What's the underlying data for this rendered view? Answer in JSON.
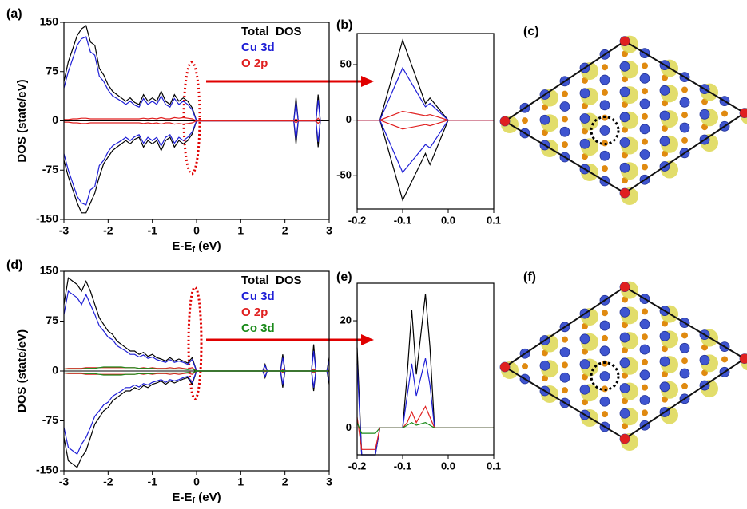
{
  "chart_data": [
    {
      "type": "line",
      "panel_label": "(a)",
      "ylabel": "DOS (state/eV)",
      "xlabel": {
        "main": "E-E",
        "sub": "f",
        "unit": " (eV)"
      },
      "xlim": [
        -3,
        3
      ],
      "xticks": [
        -3,
        -2,
        -1,
        0,
        1,
        2,
        3
      ],
      "ylim": [
        -150,
        150
      ],
      "yticks": [
        -150,
        -75,
        0,
        75,
        150
      ],
      "legend": "upper right",
      "x": [
        -3,
        -2.9,
        -2.8,
        -2.7,
        -2.6,
        -2.5,
        -2.4,
        -2.3,
        -2.2,
        -2.1,
        -2,
        -1.9,
        -1.8,
        -1.7,
        -1.6,
        -1.5,
        -1.4,
        -1.3,
        -1.2,
        -1.1,
        -1,
        -0.9,
        -0.8,
        -0.7,
        -0.6,
        -0.5,
        -0.4,
        -0.3,
        -0.2,
        -0.1,
        0,
        2.2,
        2.25,
        2.3,
        2.7,
        2.75,
        2.8
      ],
      "series": [
        {
          "name": "Total  DOS",
          "color": "#000000",
          "values": [
            60,
            90,
            110,
            130,
            140,
            145,
            120,
            115,
            80,
            70,
            55,
            45,
            40,
            35,
            30,
            35,
            28,
            25,
            40,
            30,
            35,
            30,
            45,
            30,
            25,
            40,
            30,
            35,
            30,
            20,
            0,
            0,
            35,
            0,
            0,
            40,
            0
          ],
          "values_down": [
            -60,
            -85,
            -105,
            -125,
            -140,
            -140,
            -125,
            -110,
            -85,
            -65,
            -55,
            -45,
            -40,
            -35,
            -30,
            -35,
            -28,
            -25,
            -40,
            -30,
            -35,
            -30,
            -45,
            -30,
            -25,
            -40,
            -30,
            -35,
            -30,
            -20,
            0,
            0,
            -35,
            0,
            0,
            -40,
            0
          ]
        },
        {
          "name": "Cu 3d",
          "color": "#1f1fd6",
          "values": [
            50,
            75,
            95,
            115,
            125,
            128,
            105,
            100,
            68,
            60,
            47,
            38,
            34,
            30,
            25,
            30,
            24,
            21,
            34,
            25,
            30,
            25,
            38,
            25,
            21,
            34,
            25,
            30,
            25,
            17,
            0,
            0,
            28,
            0,
            0,
            32,
            0
          ],
          "values_down": [
            -50,
            -75,
            -95,
            -115,
            -125,
            -128,
            -105,
            -100,
            -68,
            -60,
            -47,
            -38,
            -34,
            -30,
            -25,
            -30,
            -24,
            -21,
            -34,
            -25,
            -30,
            -25,
            -38,
            -25,
            -21,
            -34,
            -25,
            -30,
            -25,
            -17,
            0,
            0,
            -28,
            0,
            0,
            -32,
            0
          ]
        },
        {
          "name": "O 2p",
          "color": "#e02020",
          "values": [
            2,
            2,
            3,
            3,
            4,
            4,
            3,
            3,
            3,
            3,
            3,
            3,
            3,
            3,
            3,
            3,
            3,
            3,
            4,
            3,
            4,
            3,
            5,
            3,
            3,
            5,
            4,
            5,
            4,
            3,
            0,
            0,
            3,
            0,
            0,
            4,
            0
          ],
          "values_down": [
            -2,
            -2,
            -3,
            -3,
            -4,
            -4,
            -3,
            -3,
            -3,
            -3,
            -3,
            -3,
            -3,
            -3,
            -3,
            -3,
            -3,
            -3,
            -4,
            -3,
            -4,
            -3,
            -5,
            -3,
            -3,
            -5,
            -4,
            -5,
            -4,
            -3,
            0,
            0,
            -3,
            0,
            0,
            -4,
            0
          ]
        }
      ]
    },
    {
      "type": "line",
      "panel_label": "(b)",
      "xlim": [
        -0.2,
        0.1
      ],
      "xticks": [
        -0.2,
        -0.1,
        {
          "value": 0,
          "label": "0.0"
        },
        0.1
      ],
      "ylim": [
        -80,
        78
      ],
      "yticks": [
        -50,
        0,
        50
      ],
      "x": [
        -0.2,
        -0.15,
        -0.1,
        -0.05,
        -0.04,
        0,
        0.1
      ],
      "series": [
        {
          "color": "#000000",
          "values": [
            0,
            0,
            72,
            15,
            20,
            0,
            0
          ],
          "values_down": [
            0,
            0,
            -72,
            -30,
            -40,
            0,
            0
          ]
        },
        {
          "color": "#1f1fd6",
          "values": [
            0,
            0,
            47,
            12,
            15,
            0,
            0
          ],
          "values_down": [
            0,
            0,
            -47,
            -22,
            -25,
            0,
            0
          ]
        },
        {
          "color": "#e02020",
          "values": [
            0,
            0,
            8,
            4,
            5,
            0,
            0
          ],
          "values_down": [
            0,
            0,
            -8,
            -4,
            -5,
            0,
            0
          ]
        }
      ]
    },
    {
      "type": "line",
      "panel_label": "(d)",
      "ylabel": "DOS (state/eV)",
      "xlabel": {
        "main": "E-E",
        "sub": "f",
        "unit": " (eV)"
      },
      "xlim": [
        -3,
        3
      ],
      "xticks": [
        -3,
        -2,
        -1,
        0,
        1,
        2,
        3
      ],
      "ylim": [
        -150,
        150
      ],
      "yticks": [
        -150,
        -75,
        0,
        75,
        150
      ],
      "legend": "upper right",
      "x": [
        -3,
        -2.9,
        -2.8,
        -2.7,
        -2.6,
        -2.5,
        -2.4,
        -2.3,
        -2.2,
        -2.1,
        -2,
        -1.9,
        -1.8,
        -1.7,
        -1.6,
        -1.5,
        -1.4,
        -1.3,
        -1.2,
        -1.1,
        -1,
        -0.9,
        -0.8,
        -0.7,
        -0.6,
        -0.5,
        -0.4,
        -0.3,
        -0.2,
        -0.1,
        0,
        1.5,
        1.55,
        1.6,
        1.9,
        1.95,
        2,
        2.6,
        2.65,
        2.7,
        2.95,
        3
      ],
      "series": [
        {
          "name": "Total  DOS",
          "color": "#000000",
          "values": [
            100,
            140,
            135,
            130,
            120,
            135,
            120,
            100,
            80,
            70,
            60,
            55,
            45,
            40,
            35,
            30,
            30,
            25,
            28,
            22,
            25,
            20,
            18,
            15,
            20,
            15,
            18,
            15,
            12,
            20,
            0,
            0,
            10,
            0,
            0,
            25,
            0,
            0,
            40,
            0,
            0,
            20
          ],
          "values_down": [
            -100,
            -135,
            -140,
            -145,
            -130,
            -120,
            -100,
            -80,
            -70,
            -60,
            -55,
            -45,
            -40,
            -35,
            -30,
            -30,
            -25,
            -28,
            -22,
            -25,
            -20,
            -18,
            -15,
            -20,
            -15,
            -18,
            -15,
            -12,
            -10,
            -20,
            0,
            0,
            -10,
            0,
            0,
            -25,
            0,
            0,
            -30,
            0,
            0,
            -20
          ]
        },
        {
          "name": "Cu 3d",
          "color": "#1f1fd6",
          "values": [
            85,
            120,
            115,
            110,
            100,
            115,
            100,
            85,
            68,
            60,
            51,
            47,
            38,
            34,
            30,
            25,
            25,
            21,
            24,
            19,
            21,
            17,
            15,
            13,
            17,
            13,
            15,
            13,
            10,
            17,
            0,
            0,
            8,
            0,
            0,
            20,
            0,
            0,
            30,
            0,
            0,
            15
          ],
          "values_down": [
            -85,
            -115,
            -120,
            -125,
            -110,
            -100,
            -85,
            -68,
            -60,
            -51,
            -47,
            -38,
            -34,
            -30,
            -25,
            -25,
            -21,
            -24,
            -19,
            -21,
            -17,
            -15,
            -13,
            -17,
            -13,
            -15,
            -13,
            -10,
            -8,
            -17,
            0,
            0,
            -8,
            0,
            0,
            -20,
            0,
            0,
            -25,
            0,
            0,
            -15
          ]
        },
        {
          "name": "O 2p",
          "color": "#e02020",
          "values": [
            3,
            4,
            4,
            4,
            4,
            5,
            5,
            5,
            5,
            5,
            5,
            5,
            5,
            5,
            5,
            5,
            5,
            4,
            5,
            4,
            5,
            4,
            4,
            4,
            5,
            4,
            5,
            4,
            3,
            5,
            0,
            0,
            1,
            0,
            0,
            2,
            0,
            0,
            3,
            0,
            0,
            1
          ],
          "values_down": [
            -3,
            -4,
            -4,
            -4,
            -4,
            -5,
            -5,
            -5,
            -5,
            -5,
            -5,
            -5,
            -5,
            -5,
            -5,
            -5,
            -5,
            -4,
            -5,
            -4,
            -5,
            -4,
            -4,
            -4,
            -5,
            -4,
            -5,
            -4,
            -3,
            -5,
            0,
            0,
            -1,
            0,
            0,
            -2,
            0,
            0,
            -3,
            0,
            0,
            -1
          ]
        },
        {
          "name": "Co 3d",
          "color": "#1a8a1a",
          "values": [
            3,
            3,
            3,
            3,
            3,
            4,
            4,
            4,
            5,
            6,
            6,
            6,
            6,
            6,
            5,
            5,
            5,
            4,
            4,
            4,
            4,
            3,
            3,
            3,
            3,
            3,
            3,
            3,
            2,
            3,
            0,
            0,
            0,
            0,
            0,
            1,
            0,
            0,
            1,
            0,
            0,
            0
          ],
          "values_down": [
            -3,
            -3,
            -3,
            -3,
            -3,
            -4,
            -4,
            -4,
            -5,
            -6,
            -6,
            -6,
            -6,
            -6,
            -5,
            -5,
            -5,
            -4,
            -4,
            -4,
            -4,
            -3,
            -3,
            -3,
            -3,
            -3,
            -3,
            -3,
            -2,
            -3,
            0,
            0,
            0,
            0,
            0,
            -1,
            0,
            0,
            -1,
            0,
            0,
            0
          ]
        }
      ]
    },
    {
      "type": "line",
      "panel_label": "(e)",
      "xlim": [
        -0.2,
        0.1
      ],
      "xticks": [
        -0.2,
        -0.1,
        {
          "value": 0,
          "label": "0.0"
        },
        0.1
      ],
      "ylim": [
        -5,
        27
      ],
      "yticks": [
        0,
        20
      ],
      "x": [
        -0.2,
        -0.19,
        -0.16,
        -0.15,
        -0.1,
        -0.09,
        -0.08,
        -0.07,
        -0.05,
        -0.04,
        -0.03,
        0,
        0.1
      ],
      "series": [
        {
          "color": "#000000",
          "values": [
            15,
            -5,
            -5,
            0,
            0,
            10,
            22,
            10,
            25,
            15,
            0,
            0,
            0
          ]
        },
        {
          "color": "#1f1fd6",
          "values": [
            12,
            -5,
            -5,
            0,
            0,
            6,
            12,
            6,
            13,
            8,
            0,
            0,
            0
          ]
        },
        {
          "color": "#e02020",
          "values": [
            2,
            -4,
            -4,
            0,
            0,
            1,
            3,
            1,
            4,
            2,
            0,
            0,
            0
          ]
        },
        {
          "color": "#1a8a1a",
          "values": [
            1,
            -1,
            -1,
            0,
            0,
            0.5,
            1,
            0.5,
            1,
            0.5,
            0,
            0,
            0
          ]
        }
      ]
    }
  ],
  "images": [
    {
      "label": "(c)"
    },
    {
      "label": "(f)"
    }
  ]
}
